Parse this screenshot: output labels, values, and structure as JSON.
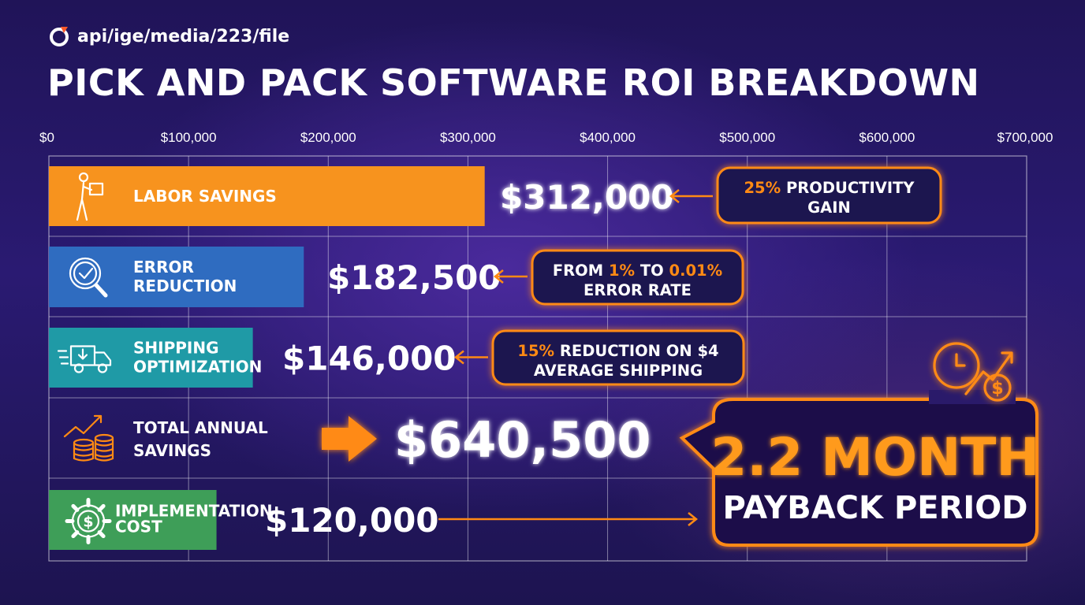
{
  "source": {
    "icon": "circle-logo-icon",
    "text": "api/ige/media/223/file"
  },
  "title": "PICK AND PACK SOFTWARE ROI BREAKDOWN",
  "colors": {
    "orange": "#f7931e",
    "blue": "#2f6cc0",
    "teal": "#1f9aa6",
    "green": "#3e9e58",
    "accent": "#ff8a14"
  },
  "chart_data": {
    "type": "bar",
    "orientation": "horizontal",
    "xlim": [
      0,
      700000
    ],
    "x_ticks": [
      "$0",
      "$100,000",
      "$200,000",
      "$300,000",
      "$400,000",
      "$500,000",
      "$600,000",
      "$700,000"
    ],
    "grid": true,
    "categories": [
      {
        "lines": [
          "LABOR SAVINGS"
        ],
        "value": 312000,
        "value_label": "$312,000",
        "icon": "worker-carrying-box-icon",
        "color": "#f7931e",
        "has_bar": true,
        "callout": [
          [
            {
              "t": "25%",
              "hl": true
            },
            {
              "t": " PRODUCTIVITY",
              "hl": false
            }
          ],
          [
            {
              "t": "GAIN",
              "hl": false
            }
          ]
        ]
      },
      {
        "lines": [
          "ERROR",
          "REDUCTION"
        ],
        "value": 182500,
        "value_label": "$182,500",
        "icon": "magnifier-check-icon",
        "color": "#2f6cc0",
        "has_bar": true,
        "callout": [
          [
            {
              "t": "FROM ",
              "hl": false
            },
            {
              "t": "1%",
              "hl": true
            },
            {
              "t": " TO ",
              "hl": false
            },
            {
              "t": "0.01%",
              "hl": true
            }
          ],
          [
            {
              "t": "ERROR RATE",
              "hl": false
            }
          ]
        ]
      },
      {
        "lines": [
          "SHIPPING",
          "OPTIMIZATION"
        ],
        "value": 146000,
        "value_label": "$146,000",
        "icon": "delivery-truck-icon",
        "color": "#1f9aa6",
        "has_bar": true,
        "callout": [
          [
            {
              "t": "15%",
              "hl": true
            },
            {
              "t": " REDUCTION ON $4",
              "hl": false
            }
          ],
          [
            {
              "t": "AVERAGE SHIPPING",
              "hl": false
            }
          ]
        ]
      },
      {
        "lines": [
          "TOTAL ANNUAL",
          "SAVINGS"
        ],
        "value": 640500,
        "value_label": "$640,500",
        "icon": "coins-growth-icon",
        "color": "#ff8a14",
        "has_bar": false,
        "callout": null
      },
      {
        "lines": [
          "IMPLEMENTATION",
          "COST"
        ],
        "value": 120000,
        "value_label": "$120,000",
        "icon": "gear-dollar-icon",
        "color": "#3e9e58",
        "has_bar": true,
        "callout": null
      }
    ],
    "payback": {
      "value": "2.2 MONTH",
      "label": "PAYBACK PERIOD",
      "icon": "clock-growth-dollar-icon"
    }
  }
}
